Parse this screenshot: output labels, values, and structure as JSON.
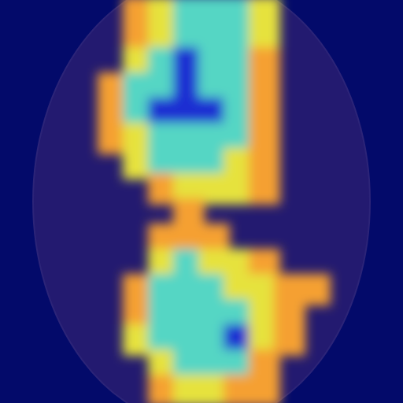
{
  "chart_data": {
    "type": "heatmap",
    "tick_labels": false,
    "color_range": [
      0,
      4
    ],
    "cells": [
      [
        0,
        0,
        0,
        0,
        0,
        1,
        2,
        3,
        3,
        3,
        2,
        0,
        0,
        0,
        0,
        0
      ],
      [
        0,
        0,
        0,
        0,
        0,
        1,
        2,
        3,
        3,
        3,
        2,
        0,
        0,
        0,
        0,
        0
      ],
      [
        0,
        0,
        0,
        0,
        0,
        2,
        3,
        4,
        3,
        3,
        1,
        0,
        0,
        0,
        0,
        0
      ],
      [
        0,
        0,
        0,
        0,
        1,
        3,
        3,
        4,
        3,
        3,
        1,
        0,
        0,
        0,
        0,
        0
      ],
      [
        0,
        0,
        0,
        0,
        1,
        3,
        4,
        4,
        4,
        3,
        1,
        0,
        0,
        0,
        0,
        0
      ],
      [
        0,
        0,
        0,
        0,
        1,
        2,
        3,
        3,
        3,
        3,
        1,
        0,
        0,
        0,
        0,
        0
      ],
      [
        0,
        0,
        0,
        0,
        0,
        2,
        3,
        3,
        3,
        2,
        1,
        0,
        0,
        0,
        0,
        0
      ],
      [
        0,
        0,
        0,
        0,
        0,
        0,
        1,
        2,
        2,
        2,
        1,
        0,
        0,
        0,
        0,
        0
      ],
      [
        0,
        0,
        0,
        0,
        0,
        0,
        0,
        1,
        0,
        0,
        0,
        0,
        0,
        0,
        0,
        0
      ],
      [
        0,
        0,
        0,
        0,
        0,
        0,
        1,
        1,
        1,
        0,
        0,
        0,
        0,
        0,
        0,
        0
      ],
      [
        0,
        0,
        0,
        0,
        0,
        0,
        2,
        3,
        2,
        2,
        1,
        0,
        0,
        0,
        0,
        0
      ],
      [
        0,
        0,
        0,
        0,
        0,
        1,
        3,
        3,
        3,
        2,
        2,
        1,
        1,
        0,
        0,
        0
      ],
      [
        0,
        0,
        0,
        0,
        0,
        1,
        3,
        3,
        3,
        3,
        2,
        1,
        0,
        0,
        0,
        0
      ],
      [
        0,
        0,
        0,
        0,
        0,
        2,
        3,
        3,
        3,
        4,
        2,
        1,
        0,
        0,
        0,
        0
      ],
      [
        0,
        0,
        0,
        0,
        0,
        0,
        2,
        3,
        3,
        3,
        1,
        0,
        0,
        0,
        0,
        0
      ],
      [
        0,
        0,
        0,
        0,
        0,
        0,
        1,
        2,
        2,
        1,
        1,
        0,
        0,
        0,
        0,
        0
      ]
    ]
  }
}
